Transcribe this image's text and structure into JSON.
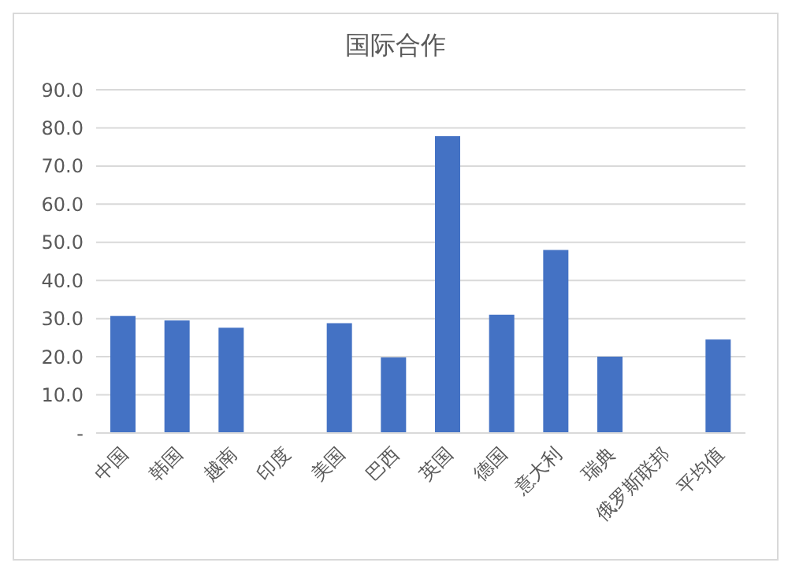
{
  "chart_data": {
    "type": "bar",
    "title": "国际合作",
    "categories": [
      "中国",
      "韩国",
      "越南",
      "印度",
      "美国",
      "巴西",
      "英国",
      "德国",
      "意大利",
      "瑞典",
      "俄罗斯联邦",
      "平均值"
    ],
    "values": [
      30.7,
      29.5,
      27.6,
      0,
      28.8,
      19.8,
      77.8,
      31,
      48,
      20,
      0,
      24.5
    ],
    "color": "#4472c4",
    "ylim": [
      0,
      90
    ],
    "yticks": [
      {
        "value": 0,
        "label": "-"
      },
      {
        "value": 10,
        "label": "10.0"
      },
      {
        "value": 20,
        "label": "20.0"
      },
      {
        "value": 30,
        "label": "30.0"
      },
      {
        "value": 40,
        "label": "40.0"
      },
      {
        "value": 50,
        "label": "50.0"
      },
      {
        "value": 60,
        "label": "60.0"
      },
      {
        "value": 70,
        "label": "70.0"
      },
      {
        "value": 80,
        "label": "80.0"
      },
      {
        "value": 90,
        "label": "90.0"
      }
    ],
    "grid": "y"
  }
}
